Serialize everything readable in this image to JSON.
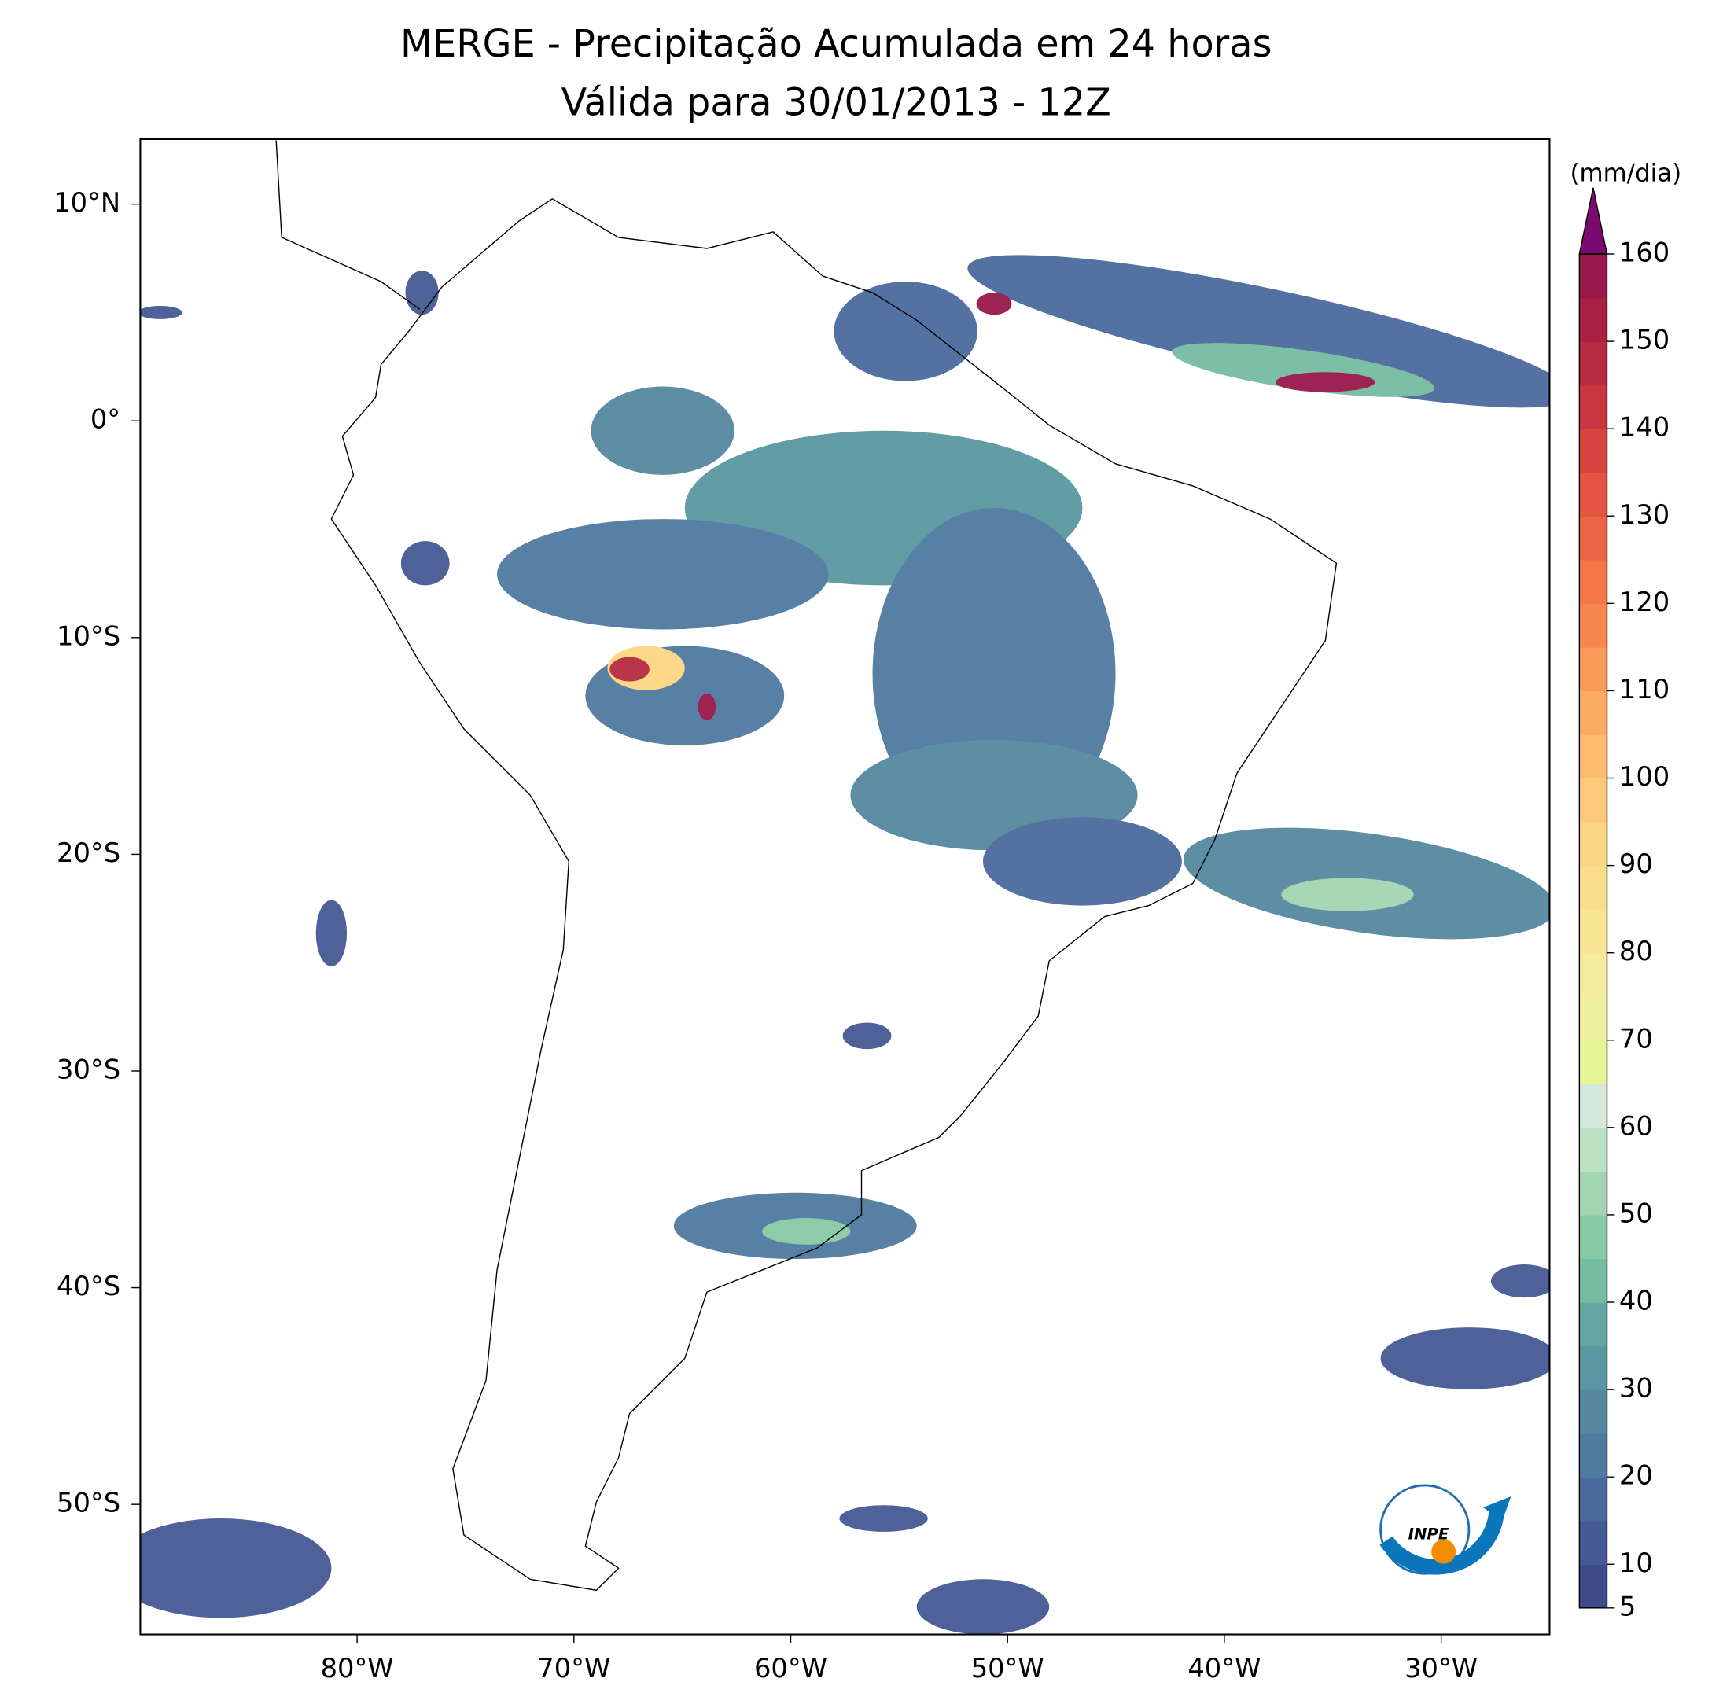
{
  "chart_data": {
    "type": "map",
    "title": "MERGE - Precipitação Acumulada em 24 horas",
    "subtitle": "Válida para 30/01/2013 - 12Z",
    "xlim": [
      -90,
      -25
    ],
    "ylim": [
      -56,
      13
    ],
    "xticks": [
      {
        "value": -80,
        "label": "80°W"
      },
      {
        "value": -70,
        "label": "70°W"
      },
      {
        "value": -60,
        "label": "60°W"
      },
      {
        "value": -50,
        "label": "50°W"
      },
      {
        "value": -40,
        "label": "40°W"
      },
      {
        "value": -30,
        "label": "30°W"
      }
    ],
    "yticks": [
      {
        "value": 10,
        "label": "10°N"
      },
      {
        "value": 0,
        "label": "0°"
      },
      {
        "value": -10,
        "label": "10°S"
      },
      {
        "value": -20,
        "label": "20°S"
      },
      {
        "value": -30,
        "label": "30°S"
      },
      {
        "value": -40,
        "label": "40°S"
      },
      {
        "value": -50,
        "label": "50°S"
      }
    ],
    "colorbar": {
      "label": "(mm/dia)",
      "lim": [
        5,
        160
      ],
      "ticks": [
        5,
        10,
        20,
        30,
        40,
        50,
        60,
        70,
        80,
        90,
        100,
        110,
        120,
        130,
        140,
        150,
        160
      ],
      "levels": [
        5,
        10,
        15,
        20,
        25,
        30,
        35,
        40,
        45,
        50,
        55,
        60,
        65,
        70,
        75,
        80,
        85,
        90,
        95,
        100,
        105,
        110,
        115,
        120,
        125,
        130,
        135,
        140,
        145,
        150,
        155,
        160
      ],
      "colors": [
        "#3f4a8a",
        "#455a94",
        "#4a6a9c",
        "#4f7aa0",
        "#5588a0",
        "#5a97a0",
        "#63a8a0",
        "#74bda2",
        "#88c9a5",
        "#a3d5b0",
        "#bde1c4",
        "#d2e9dc",
        "#e6f598",
        "#eef0a0",
        "#f4eb9c",
        "#f8e594",
        "#fbde8c",
        "#fdd683",
        "#fdc97a",
        "#fdbb6f",
        "#fcab63",
        "#fa9a58",
        "#f7874e",
        "#f37648",
        "#ec6544",
        "#e35541",
        "#d6453f",
        "#c8373f",
        "#b82b40",
        "#a82043",
        "#981849"
      ],
      "extend_color": "#7b0a6e"
    },
    "logo": "INPE"
  }
}
